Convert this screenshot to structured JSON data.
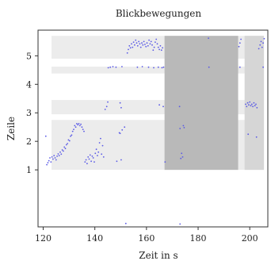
{
  "chart_data": {
    "type": "scatter",
    "title": "Blickbewegungen",
    "xlabel": "Zeit in s",
    "ylabel": "Zeile",
    "xlim": [
      118,
      207
    ],
    "ylim": [
      -1.0,
      5.9
    ],
    "x_ticks": [
      120,
      140,
      160,
      180,
      200
    ],
    "y_ticks": [
      1,
      2,
      3,
      4,
      5
    ],
    "grid": false,
    "colors": {
      "points": "#5a5ae6",
      "row_bands": "#ececec",
      "gap_dark": "#b9b9b9",
      "gap_light": "#d6d6d6"
    },
    "row_bands": [
      {
        "row": 5,
        "y_from": 4.9,
        "y_to": 5.7
      },
      {
        "row": 4.5,
        "y_from": 4.38,
        "y_to": 4.62
      },
      {
        "row": 3,
        "y_from": 2.95,
        "y_to": 3.45
      },
      {
        "row": 2,
        "y_from": 1.0,
        "y_to": 2.75
      }
    ],
    "shaded_intervals": [
      {
        "x_from": 167.0,
        "x_to": 195.5,
        "shade": "dark"
      },
      {
        "x_from": 198.0,
        "x_to": 205.5,
        "shade": "light"
      }
    ],
    "points": [
      [
        121.0,
        2.18
      ],
      [
        121.4,
        1.18
      ],
      [
        121.8,
        1.25
      ],
      [
        122.2,
        1.32
      ],
      [
        122.6,
        1.42
      ],
      [
        123.0,
        1.28
      ],
      [
        123.4,
        1.45
      ],
      [
        123.8,
        1.38
      ],
      [
        124.2,
        1.5
      ],
      [
        124.6,
        1.42
      ],
      [
        125.0,
        1.35
      ],
      [
        125.4,
        1.48
      ],
      [
        125.8,
        1.56
      ],
      [
        126.2,
        1.5
      ],
      [
        126.6,
        1.62
      ],
      [
        127.0,
        1.55
      ],
      [
        127.4,
        1.7
      ],
      [
        127.8,
        1.66
      ],
      [
        128.2,
        1.8
      ],
      [
        128.6,
        1.75
      ],
      [
        129.0,
        1.88
      ],
      [
        129.4,
        1.92
      ],
      [
        129.8,
        2.05
      ],
      [
        130.2,
        2.02
      ],
      [
        130.6,
        2.18
      ],
      [
        131.0,
        2.22
      ],
      [
        131.4,
        2.35
      ],
      [
        131.8,
        2.42
      ],
      [
        132.2,
        2.55
      ],
      [
        132.6,
        2.5
      ],
      [
        133.0,
        2.62
      ],
      [
        133.4,
        2.58
      ],
      [
        133.8,
        2.62
      ],
      [
        134.2,
        2.55
      ],
      [
        134.6,
        2.6
      ],
      [
        135.0,
        2.5
      ],
      [
        135.4,
        2.42
      ],
      [
        135.8,
        2.35
      ],
      [
        136.2,
        1.28
      ],
      [
        136.6,
        1.35
      ],
      [
        137.0,
        1.22
      ],
      [
        137.4,
        1.45
      ],
      [
        137.8,
        1.38
      ],
      [
        138.2,
        1.52
      ],
      [
        138.6,
        1.3
      ],
      [
        139.0,
        1.48
      ],
      [
        139.4,
        1.42
      ],
      [
        139.8,
        1.28
      ],
      [
        140.2,
        1.58
      ],
      [
        140.6,
        1.72
      ],
      [
        141.0,
        1.5
      ],
      [
        141.4,
        1.62
      ],
      [
        141.8,
        1.95
      ],
      [
        142.2,
        2.1
      ],
      [
        142.6,
        1.55
      ],
      [
        143.0,
        1.85
      ],
      [
        143.4,
        1.45
      ],
      [
        144.0,
        3.12
      ],
      [
        144.6,
        3.22
      ],
      [
        145.0,
        3.38
      ],
      [
        145.2,
        4.58
      ],
      [
        146.0,
        4.6
      ],
      [
        147.0,
        4.62
      ],
      [
        148.2,
        4.6
      ],
      [
        148.5,
        1.3
      ],
      [
        149.5,
        2.3
      ],
      [
        149.8,
        2.28
      ],
      [
        150.2,
        1.35
      ],
      [
        150.6,
        2.4
      ],
      [
        149.8,
        3.35
      ],
      [
        150.2,
        3.18
      ],
      [
        150.5,
        4.62
      ],
      [
        151.5,
        2.5
      ],
      [
        152.6,
        5.1
      ],
      [
        153.0,
        5.22
      ],
      [
        153.4,
        5.35
      ],
      [
        153.8,
        5.28
      ],
      [
        154.2,
        5.42
      ],
      [
        154.6,
        5.3
      ],
      [
        155.0,
        5.48
      ],
      [
        155.4,
        5.38
      ],
      [
        155.8,
        5.55
      ],
      [
        156.2,
        5.45
      ],
      [
        156.6,
        5.35
      ],
      [
        157.0,
        5.5
      ],
      [
        157.4,
        5.42
      ],
      [
        157.8,
        5.3
      ],
      [
        158.2,
        5.45
      ],
      [
        158.6,
        5.38
      ],
      [
        159.0,
        5.5
      ],
      [
        159.4,
        5.4
      ],
      [
        159.8,
        5.32
      ],
      [
        160.2,
        5.45
      ],
      [
        160.6,
        5.35
      ],
      [
        161.0,
        5.55
      ],
      [
        161.4,
        5.42
      ],
      [
        161.8,
        5.5
      ],
      [
        162.2,
        5.38
      ],
      [
        162.6,
        5.2
      ],
      [
        163.0,
        5.3
      ],
      [
        163.4,
        5.48
      ],
      [
        163.8,
        5.58
      ],
      [
        164.2,
        5.42
      ],
      [
        164.6,
        5.3
      ],
      [
        165.0,
        5.22
      ],
      [
        165.4,
        5.35
      ],
      [
        165.8,
        5.2
      ],
      [
        166.2,
        5.28
      ],
      [
        156.5,
        4.6
      ],
      [
        158.4,
        4.62
      ],
      [
        160.8,
        4.6
      ],
      [
        162.8,
        4.58
      ],
      [
        164.6,
        4.6
      ],
      [
        166.0,
        4.58
      ],
      [
        166.6,
        4.6
      ],
      [
        165.0,
        3.28
      ],
      [
        166.5,
        3.22
      ],
      [
        167.2,
        1.28
      ],
      [
        152.0,
        -0.88
      ],
      [
        173.0,
        -0.9
      ],
      [
        172.8,
        3.22
      ],
      [
        173.0,
        2.45
      ],
      [
        173.3,
        1.4
      ],
      [
        173.6,
        1.58
      ],
      [
        174.0,
        1.45
      ],
      [
        174.3,
        2.55
      ],
      [
        174.6,
        2.48
      ],
      [
        184.0,
        5.62
      ],
      [
        184.2,
        4.6
      ],
      [
        195.8,
        5.32
      ],
      [
        196.2,
        5.45
      ],
      [
        196.6,
        5.58
      ],
      [
        196.2,
        4.6
      ],
      [
        198.4,
        3.3
      ],
      [
        198.8,
        3.22
      ],
      [
        199.2,
        3.35
      ],
      [
        199.6,
        3.28
      ],
      [
        200.0,
        3.38
      ],
      [
        200.4,
        3.25
      ],
      [
        200.8,
        3.3
      ],
      [
        201.2,
        3.22
      ],
      [
        201.6,
        3.35
      ],
      [
        202.0,
        3.25
      ],
      [
        202.4,
        3.3
      ],
      [
        202.8,
        3.18
      ],
      [
        199.4,
        2.25
      ],
      [
        202.6,
        2.15
      ],
      [
        203.5,
        5.25
      ],
      [
        204.0,
        5.38
      ],
      [
        204.4,
        5.5
      ],
      [
        204.8,
        5.3
      ],
      [
        205.2,
        5.45
      ],
      [
        205.6,
        5.6
      ],
      [
        205.2,
        4.6
      ]
    ]
  }
}
